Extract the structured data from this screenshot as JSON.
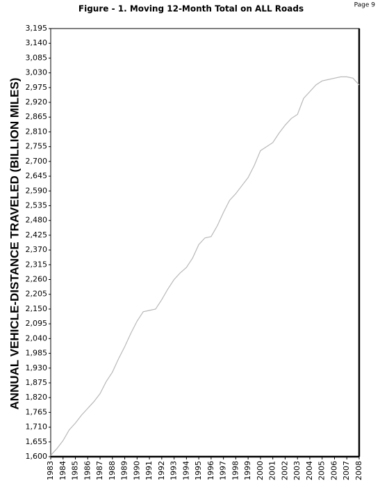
{
  "page_label": "Page 9",
  "chart_data": {
    "type": "line",
    "title": "Figure - 1.  Moving 12-Month Total on ALL Roads",
    "y_label": "ANNUAL VEHICLE-DISTANCE TRAVELED (BILLION MILES)",
    "x": [
      1983,
      1983.5,
      1984,
      1984.5,
      1985,
      1985.5,
      1986,
      1986.5,
      1987,
      1987.5,
      1988,
      1988.5,
      1989,
      1989.5,
      1990,
      1990.5,
      1991,
      1991.5,
      1992,
      1992.5,
      1993,
      1993.5,
      1994,
      1994.5,
      1995,
      1995.5,
      1996,
      1996.5,
      1997,
      1997.5,
      1998,
      1998.5,
      1999,
      1999.5,
      2000,
      2000.5,
      2001,
      2001.5,
      2002,
      2002.5,
      2003,
      2003.5,
      2004,
      2004.5,
      2005,
      2005.5,
      2006,
      2006.5,
      2007,
      2007.5,
      2008
    ],
    "series": [
      {
        "color": "#b8b8b8",
        "values": [
          1605,
          1630,
          1660,
          1700,
          1725,
          1755,
          1780,
          1805,
          1835,
          1880,
          1915,
          1965,
          2010,
          2060,
          2105,
          2140,
          2145,
          2150,
          2185,
          2225,
          2260,
          2285,
          2305,
          2340,
          2390,
          2415,
          2420,
          2460,
          2510,
          2555,
          2580,
          2610,
          2640,
          2685,
          2740,
          2755,
          2770,
          2805,
          2835,
          2860,
          2875,
          2935,
          2960,
          2985,
          3000,
          3005,
          3010,
          3015,
          3015,
          3010,
          2985
        ]
      }
    ],
    "xlim": [
      1983,
      2008
    ],
    "xticks": [
      1983,
      1984,
      1985,
      1986,
      1987,
      1988,
      1989,
      1990,
      1991,
      1992,
      1993,
      1994,
      1995,
      1996,
      1997,
      1998,
      1999,
      2000,
      2001,
      2002,
      2003,
      2004,
      2005,
      2006,
      2007,
      2008
    ],
    "ylim": [
      1600,
      3195
    ],
    "yticks": [
      {
        "value": 1600,
        "label": "1,600"
      },
      {
        "value": 1655,
        "label": "1,655"
      },
      {
        "value": 1710,
        "label": "1,710"
      },
      {
        "value": 1765,
        "label": "1,765"
      },
      {
        "value": 1820,
        "label": "1,820"
      },
      {
        "value": 1875,
        "label": "1,875"
      },
      {
        "value": 1930,
        "label": "1,930"
      },
      {
        "value": 1985,
        "label": "1,985"
      },
      {
        "value": 2040,
        "label": "2,040"
      },
      {
        "value": 2095,
        "label": "2,095"
      },
      {
        "value": 2150,
        "label": "2,150"
      },
      {
        "value": 2205,
        "label": "2,205"
      },
      {
        "value": 2260,
        "label": "2,260"
      },
      {
        "value": 2315,
        "label": "2,315"
      },
      {
        "value": 2370,
        "label": "2,370"
      },
      {
        "value": 2425,
        "label": "2,425"
      },
      {
        "value": 2480,
        "label": "2,480"
      },
      {
        "value": 2535,
        "label": "2,535"
      },
      {
        "value": 2590,
        "label": "2,590"
      },
      {
        "value": 2645,
        "label": "2,645"
      },
      {
        "value": 2700,
        "label": "2,700"
      },
      {
        "value": 2755,
        "label": "2,755"
      },
      {
        "value": 2810,
        "label": "2,810"
      },
      {
        "value": 2865,
        "label": "2,865"
      },
      {
        "value": 2920,
        "label": "2,920"
      },
      {
        "value": 2975,
        "label": "2,975"
      },
      {
        "value": 3030,
        "label": "3,030"
      },
      {
        "value": 3085,
        "label": "3,085"
      },
      {
        "value": 3140,
        "label": "3,140"
      },
      {
        "value": 3195,
        "label": "3,195"
      }
    ],
    "grid": false
  }
}
